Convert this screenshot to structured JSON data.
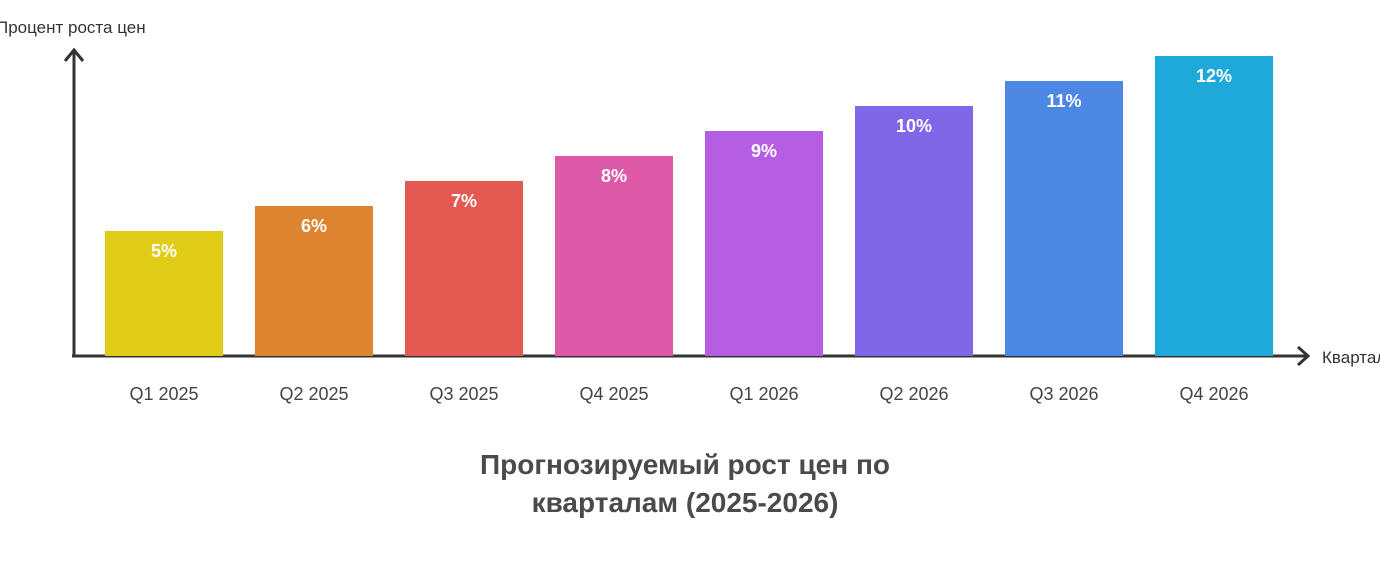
{
  "chart_data": {
    "type": "bar",
    "title_lines": [
      "Прогнозируемый рост цен по",
      "кварталам (2025-2026)"
    ],
    "xlabel": "Квартал",
    "ylabel": "Процент роста цен",
    "categories": [
      "Q1 2025",
      "Q2 2025",
      "Q3 2025",
      "Q4 2025",
      "Q1 2026",
      "Q2 2026",
      "Q3 2026",
      "Q4 2026"
    ],
    "values": [
      5,
      6,
      7,
      8,
      9,
      10,
      11,
      12
    ],
    "data_labels": [
      "5%",
      "6%",
      "7%",
      "8%",
      "9%",
      "10%",
      "11%",
      "12%"
    ],
    "bar_colors": [
      "#e0cb16",
      "#de8430",
      "#e45a52",
      "#de5aa8",
      "#b65ee3",
      "#8067e8",
      "#4d87e4",
      "#1fa9da"
    ],
    "ylim": [
      0,
      12
    ],
    "grid": false,
    "legend": "none"
  }
}
